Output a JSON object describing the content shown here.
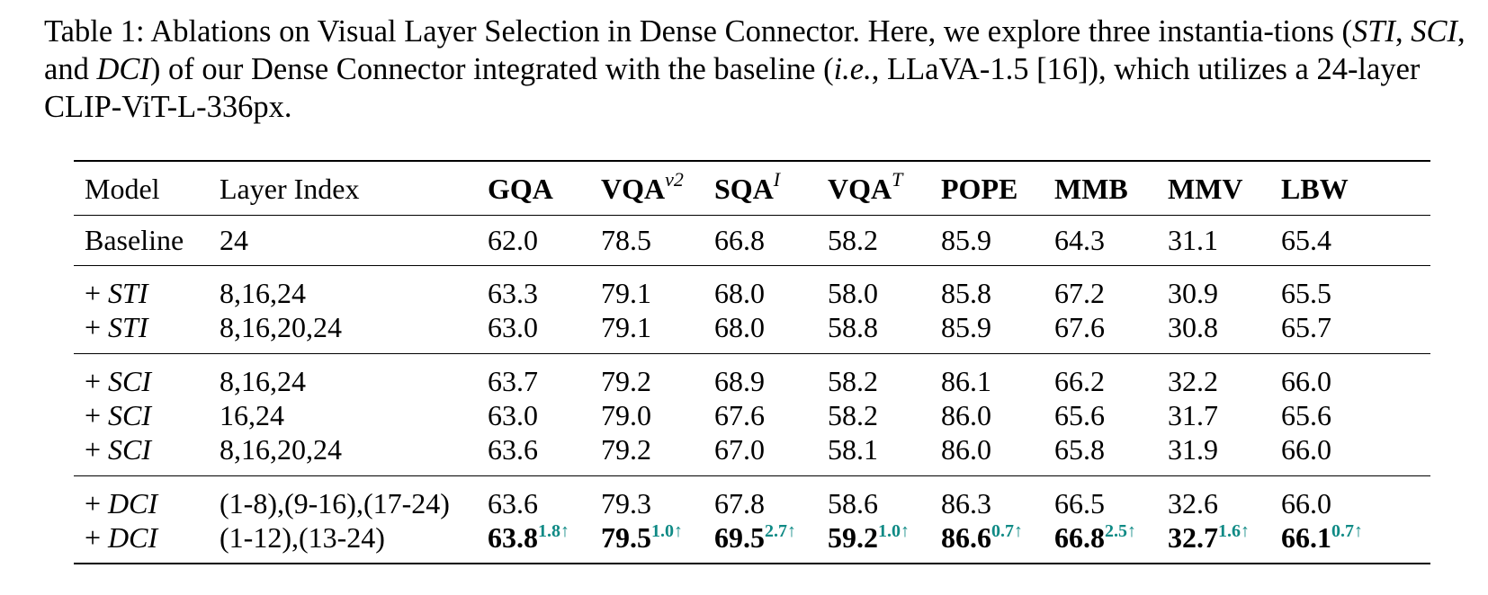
{
  "caption": {
    "label": "Table 1:",
    "text_1": " Ablations on Visual Layer Selection in Dense Connector. Here, we explore three instantia-tions (",
    "sti": "STI",
    "sep_1": ", ",
    "sci": "SCI",
    "sep_2": ", and ",
    "dci": "DCI",
    "text_2": ") of our Dense Connector integrated with the baseline (",
    "ie": "i.e.",
    "text_3": ", LLaVA-1.5 [16]), which utilizes a 24-layer CLIP-ViT-L-336px."
  },
  "table": {
    "headers": {
      "model": "Model",
      "layer_index": "Layer Index",
      "gqa": "GQA",
      "vqav2": "VQA",
      "vqav2_sup": "v2",
      "sqai": "SQA",
      "sqai_sup": "I",
      "vqat": "VQA",
      "vqat_sup": "T",
      "pope": "POPE",
      "mmb": "MMB",
      "mmv": "MMV",
      "lbw": "LBW"
    },
    "rows": [
      {
        "prefix": "",
        "model": "Baseline",
        "layers": "24",
        "values": [
          "62.0",
          "78.5",
          "66.8",
          "58.2",
          "85.9",
          "64.3",
          "31.1",
          "65.4"
        ]
      },
      {
        "prefix": "+ ",
        "model": "STI",
        "layers": "8,16,24",
        "values": [
          "63.3",
          "79.1",
          "68.0",
          "58.0",
          "85.8",
          "67.2",
          "30.9",
          "65.5"
        ]
      },
      {
        "prefix": "+ ",
        "model": "STI",
        "layers": "8,16,20,24",
        "values": [
          "63.0",
          "79.1",
          "68.0",
          "58.8",
          "85.9",
          "67.6",
          "30.8",
          "65.7"
        ]
      },
      {
        "prefix": "+ ",
        "model": "SCI",
        "layers": "8,16,24",
        "values": [
          "63.7",
          "79.2",
          "68.9",
          "58.2",
          "86.1",
          "66.2",
          "32.2",
          "66.0"
        ]
      },
      {
        "prefix": "+ ",
        "model": "SCI",
        "layers": "16,24",
        "values": [
          "63.0",
          "79.0",
          "67.6",
          "58.2",
          "86.0",
          "65.6",
          "31.7",
          "65.6"
        ]
      },
      {
        "prefix": "+ ",
        "model": "SCI",
        "layers": "8,16,20,24",
        "values": [
          "63.6",
          "79.2",
          "67.0",
          "58.1",
          "86.0",
          "65.8",
          "31.9",
          "66.0"
        ]
      },
      {
        "prefix": "+ ",
        "model": "DCI",
        "layers": "(1-8),(9-16),(17-24)",
        "values": [
          "63.6",
          "79.3",
          "67.8",
          "58.6",
          "86.3",
          "66.5",
          "32.6",
          "66.0"
        ]
      },
      {
        "prefix": "+ ",
        "model": "DCI",
        "layers": "(1-12),(13-24)",
        "values": [
          "63.8",
          "79.5",
          "69.5",
          "59.2",
          "86.6",
          "66.8",
          "32.7",
          "66.1"
        ],
        "deltas": [
          "1.8↑",
          "1.0↑",
          "2.7↑",
          "1.0↑",
          "0.7↑",
          "2.5↑",
          "1.6↑",
          "0.7↑"
        ]
      }
    ]
  },
  "colors": {
    "delta": "#0f8a85"
  }
}
